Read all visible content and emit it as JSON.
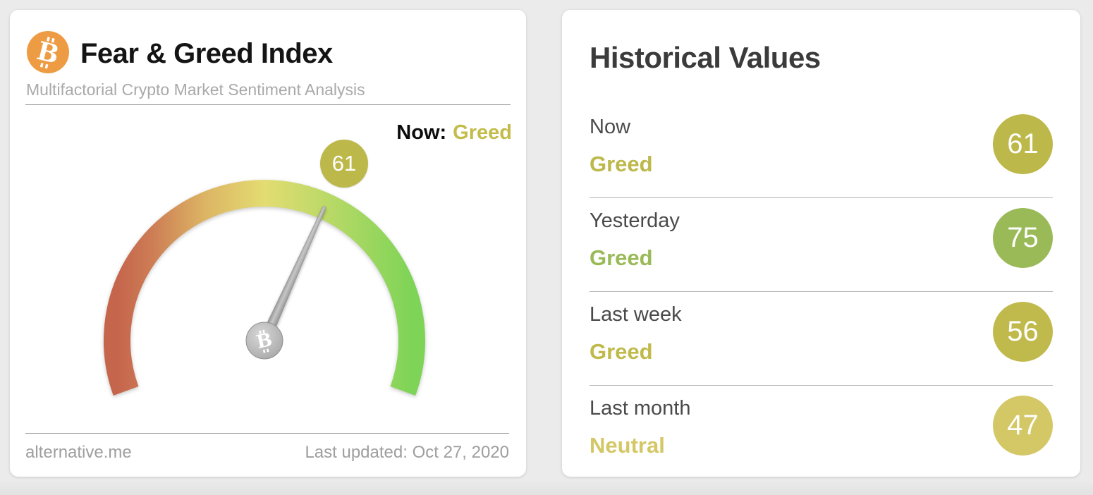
{
  "page": {
    "background": "#ebebeb"
  },
  "gauge_card": {
    "bitcoin_icon": {
      "letter": "B",
      "color": "#ee9c44"
    },
    "title": "Fear & Greed Index",
    "subtitle": "Multifactorial Crypto Market Sentiment Analysis",
    "now_label": "Now:",
    "now_classification": "Greed",
    "now_classification_color": "#c3bc4a",
    "gauge": {
      "value": 61,
      "min": 0,
      "max": 100,
      "badge_color": "#bdb84a",
      "arc_colors": [
        "#c5654c",
        "#cd7d55",
        "#ddb564",
        "#e3dc72",
        "#b9d967",
        "#7ed457"
      ],
      "hub_letter": "B"
    },
    "footer": {
      "source": "alternative.me",
      "last_updated": "Last updated: Oct 27, 2020"
    }
  },
  "history_card": {
    "title": "Historical Values",
    "rows": [
      {
        "label": "Now",
        "classification": "Greed",
        "value": 61,
        "color": "#bdb84a"
      },
      {
        "label": "Yesterday",
        "classification": "Greed",
        "value": 75,
        "color": "#9aba58"
      },
      {
        "label": "Last week",
        "classification": "Greed",
        "value": 56,
        "color": "#c0ba4c"
      },
      {
        "label": "Last month",
        "classification": "Neutral",
        "value": 47,
        "color": "#d4c766"
      }
    ]
  },
  "chart_data": {
    "type": "gauge",
    "title": "Fear & Greed Index",
    "value": 61,
    "classification": "Greed",
    "range": [
      0,
      100
    ],
    "color_scale": {
      "low": "#c5654c",
      "mid": "#e3dc72",
      "high": "#7ed457"
    },
    "last_updated": "Oct 27, 2020",
    "source": "alternative.me",
    "historical": [
      {
        "period": "Now",
        "classification": "Greed",
        "value": 61
      },
      {
        "period": "Yesterday",
        "classification": "Greed",
        "value": 75
      },
      {
        "period": "Last week",
        "classification": "Greed",
        "value": 56
      },
      {
        "period": "Last month",
        "classification": "Neutral",
        "value": 47
      }
    ]
  }
}
